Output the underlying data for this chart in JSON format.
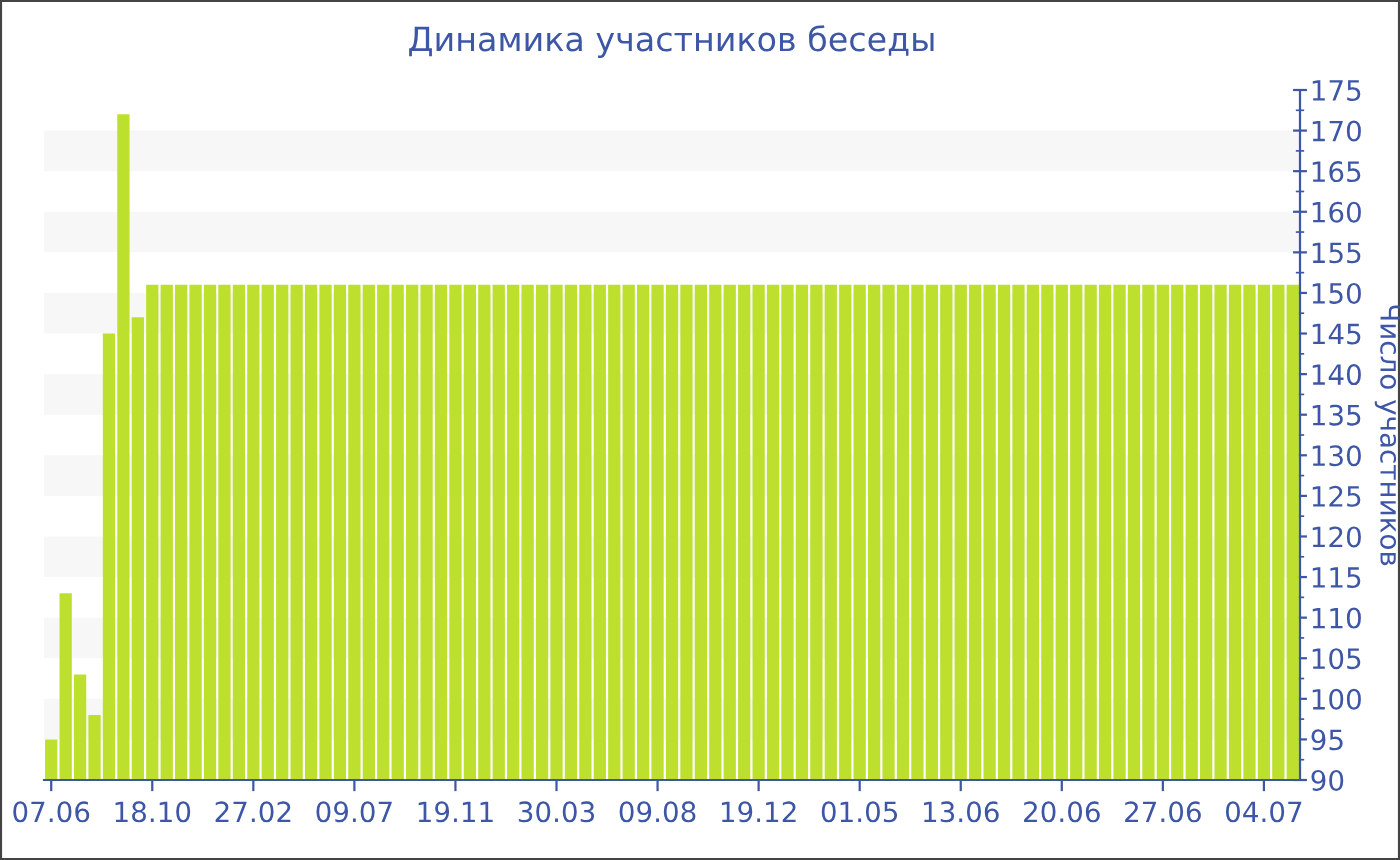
{
  "chart_data": {
    "type": "bar",
    "title": "Динамика участников беседы",
    "ylabel": "Число участников",
    "categories": [
      "07.06",
      null,
      null,
      null,
      null,
      null,
      null,
      "18.10",
      null,
      null,
      null,
      null,
      null,
      null,
      "27.02",
      null,
      null,
      null,
      null,
      null,
      null,
      "09.07",
      null,
      null,
      null,
      null,
      null,
      null,
      "19.11",
      null,
      null,
      null,
      null,
      null,
      null,
      "30.03",
      null,
      null,
      null,
      null,
      null,
      null,
      "09.08",
      null,
      null,
      null,
      null,
      null,
      null,
      "19.12",
      null,
      null,
      null,
      null,
      null,
      null,
      "01.05",
      null,
      null,
      null,
      null,
      null,
      null,
      "13.06",
      null,
      null,
      null,
      null,
      null,
      null,
      "20.06",
      null,
      null,
      null,
      null,
      null,
      null,
      "27.06",
      null,
      null,
      null,
      null,
      null,
      null,
      "04.07",
      null,
      null
    ],
    "values": [
      95,
      113,
      103,
      98,
      145,
      172,
      147,
      151,
      151,
      151,
      151,
      151,
      151,
      151,
      151,
      151,
      151,
      151,
      151,
      151,
      151,
      151,
      151,
      151,
      151,
      151,
      151,
      151,
      151,
      151,
      151,
      151,
      151,
      151,
      151,
      151,
      151,
      151,
      151,
      151,
      151,
      151,
      151,
      151,
      151,
      151,
      151,
      151,
      151,
      151,
      151,
      151,
      151,
      151,
      151,
      151,
      151,
      151,
      151,
      151,
      151,
      151,
      151,
      151,
      151,
      151,
      151,
      151,
      151,
      151,
      151,
      151,
      151,
      151,
      151,
      151,
      151,
      151,
      151,
      151,
      151,
      151,
      151,
      151,
      151,
      151,
      151
    ],
    "color": "#bde02f",
    "ylim": [
      90,
      175
    ],
    "yticks": [
      90,
      95,
      100,
      105,
      110,
      115,
      120,
      125,
      130,
      135,
      140,
      145,
      150,
      155,
      160,
      165,
      170,
      175
    ],
    "bands": [
      {
        "axis": "y",
        "from": 95,
        "to": 100,
        "color": "#f7f7f7"
      },
      {
        "axis": "y",
        "from": 105,
        "to": 110,
        "color": "#f7f7f7"
      },
      {
        "axis": "y",
        "from": 115,
        "to": 120,
        "color": "#f7f7f7"
      },
      {
        "axis": "y",
        "from": 125,
        "to": 130,
        "color": "#f7f7f7"
      },
      {
        "axis": "y",
        "from": 135,
        "to": 140,
        "color": "#f7f7f7"
      },
      {
        "axis": "y",
        "from": 145,
        "to": 150,
        "color": "#f7f7f7"
      },
      {
        "axis": "y",
        "from": 155,
        "to": 160,
        "color": "#f7f7f7"
      },
      {
        "axis": "y",
        "from": 165,
        "to": 170,
        "color": "#f7f7f7"
      }
    ],
    "grid": false
  }
}
